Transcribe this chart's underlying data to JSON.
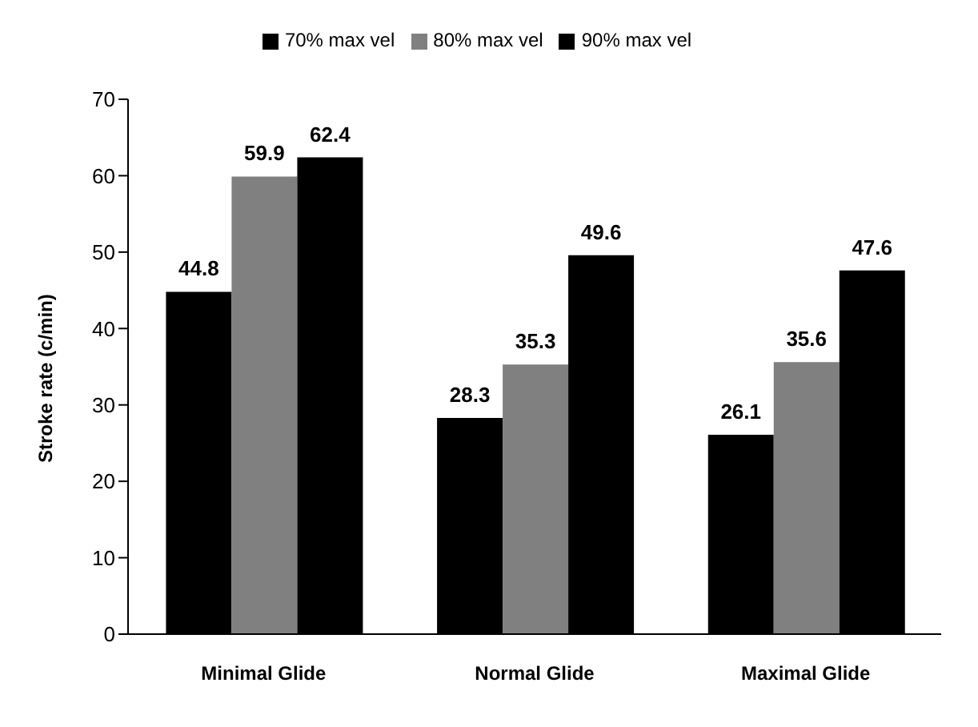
{
  "chart_data": {
    "type": "bar",
    "ylabel": "Stroke rate (c/min)",
    "categories": [
      "Minimal Glide",
      "Normal Glide",
      "Maximal Glide"
    ],
    "series": [
      {
        "name": "70% max vel",
        "color": "#000000",
        "values": [
          44.8,
          28.3,
          26.1
        ]
      },
      {
        "name": "80% max vel",
        "color": "#808080",
        "values": [
          59.9,
          35.3,
          35.6
        ]
      },
      {
        "name": "90% max vel",
        "color": "#000000",
        "values": [
          62.4,
          49.6,
          47.6
        ]
      }
    ],
    "ylim": [
      0,
      70
    ],
    "yticks": [
      0,
      10,
      20,
      30,
      40,
      50,
      60,
      70
    ],
    "grid": false,
    "legend": "top",
    "data_labels": true
  }
}
